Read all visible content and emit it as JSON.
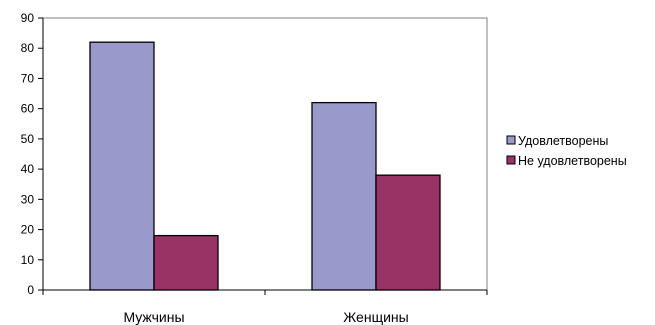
{
  "chart_data": {
    "type": "bar",
    "title": "",
    "xlabel": "",
    "ylabel": "",
    "categories": [
      "Мужчины",
      "Женщины"
    ],
    "series": [
      {
        "name": "Удовлетворены",
        "values": [
          82,
          62
        ],
        "color": "#9999cc"
      },
      {
        "name": "Не удовлетворены",
        "values": [
          18,
          38
        ],
        "color": "#993366"
      }
    ],
    "ylim": [
      0,
      90
    ],
    "yticks": [
      0,
      10,
      20,
      30,
      40,
      50,
      60,
      70,
      80,
      90
    ],
    "grid": false,
    "legend_position": "right"
  }
}
